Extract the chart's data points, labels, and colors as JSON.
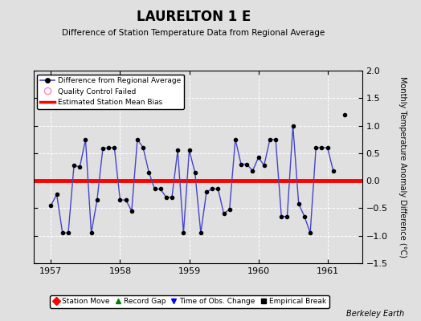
{
  "title": "LAURELTON 1 E",
  "subtitle": "Difference of Station Temperature Data from Regional Average",
  "ylabel": "Monthly Temperature Anomaly Difference (°C)",
  "xlabel_credit": "Berkeley Earth",
  "xlim": [
    1956.75,
    1961.5
  ],
  "ylim": [
    -1.5,
    2.0
  ],
  "yticks": [
    -1.5,
    -1.0,
    -0.5,
    0.0,
    0.5,
    1.0,
    1.5,
    2.0
  ],
  "xticks": [
    1957,
    1958,
    1959,
    1960,
    1961
  ],
  "bias_value": 0.0,
  "background_color": "#e0e0e0",
  "plot_bg_color": "#e0e0e0",
  "line_color": "#4444cc",
  "marker_color": "#000000",
  "bias_color": "#ff0000",
  "isolated_point_x": 1961.25,
  "isolated_point_y": 1.2,
  "x_data": [
    1957.0,
    1957.083,
    1957.167,
    1957.25,
    1957.333,
    1957.417,
    1957.5,
    1957.583,
    1957.667,
    1957.75,
    1957.833,
    1957.917,
    1958.0,
    1958.083,
    1958.167,
    1958.25,
    1958.333,
    1958.417,
    1958.5,
    1958.583,
    1958.667,
    1958.75,
    1958.833,
    1958.917,
    1959.0,
    1959.083,
    1959.167,
    1959.25,
    1959.333,
    1959.417,
    1959.5,
    1959.583,
    1959.667,
    1959.75,
    1959.833,
    1959.917,
    1960.0,
    1960.083,
    1960.167,
    1960.25,
    1960.333,
    1960.417,
    1960.5,
    1960.583,
    1960.667,
    1960.75,
    1960.833,
    1960.917,
    1961.0,
    1961.083
  ],
  "y_data": [
    -0.45,
    -0.25,
    -0.95,
    -0.95,
    0.28,
    0.25,
    0.75,
    -0.95,
    -0.35,
    0.58,
    0.6,
    0.6,
    -0.35,
    -0.35,
    -0.55,
    0.75,
    0.6,
    0.15,
    -0.15,
    -0.15,
    -0.3,
    -0.3,
    0.55,
    -0.95,
    0.55,
    0.15,
    -0.95,
    -0.2,
    -0.15,
    -0.15,
    -0.6,
    -0.52,
    0.75,
    0.3,
    0.3,
    0.18,
    0.42,
    0.28,
    0.75,
    0.75,
    -0.65,
    -0.65,
    1.0,
    -0.42,
    -0.65,
    -0.95,
    0.6,
    0.6,
    0.6,
    0.18
  ]
}
